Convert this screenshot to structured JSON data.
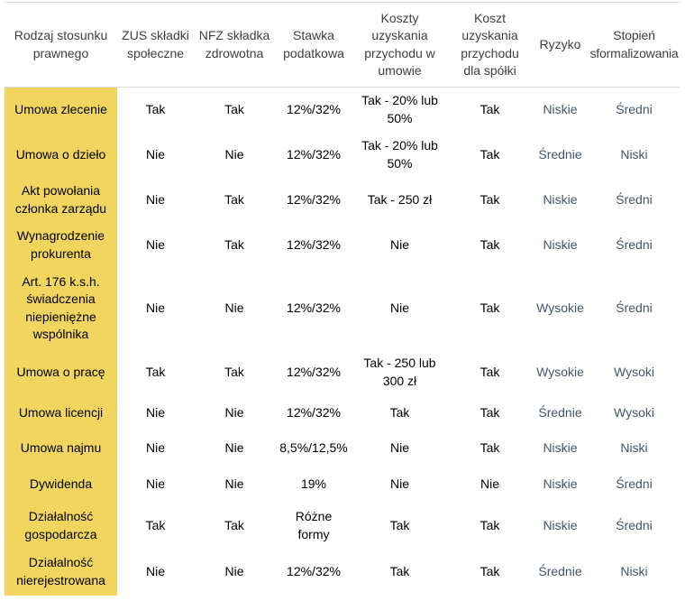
{
  "colors": {
    "highlight-yellow": "#F2D55F",
    "header-text": "#404040",
    "body-text": "#000000",
    "accent-text": "#44546A",
    "border-color": "#D9D9D9",
    "page-bg": "#FFFFFF"
  },
  "table": {
    "columns": [
      {
        "label": "Rodzaj stosunku prawnego"
      },
      {
        "label": "ZUS składki społeczne"
      },
      {
        "label": "NFZ składka zdrowotna"
      },
      {
        "label": "Stawka podatkowa"
      },
      {
        "label": "Koszty uzyskania przychodu w umowie"
      },
      {
        "label": "Koszt uzyskania przychodu dla spółki"
      },
      {
        "label": "Ryzyko"
      },
      {
        "label": "Stopień sformalizowania"
      }
    ],
    "rows": [
      {
        "cells": [
          "Umowa zlecenie",
          "Tak",
          "Tak",
          "12%/32%",
          "Tak - 20% lub 50%",
          "Tak",
          "Niskie",
          "Średni"
        ]
      },
      {
        "cells": [
          "Umowa o dzieło",
          "Nie",
          "Nie",
          "12%/32%",
          "Tak - 20% lub 50%",
          "Tak",
          "Średnie",
          "Niski"
        ]
      },
      {
        "cells": [
          "Akt powołania członka zarządu",
          "Nie",
          "Tak",
          "12%/32%",
          "Tak - 250 zł",
          "Tak",
          "Niskie",
          "Średni"
        ]
      },
      {
        "cells": [
          "Wynagrodzenie prokurenta",
          "Nie",
          "Tak",
          "12%/32%",
          "Nie",
          "Tak",
          "Niskie",
          "Średni"
        ]
      },
      {
        "cells": [
          "Art. 176 k.s.h. świadczenia niepieniężne wspólnika",
          "Nie",
          "Nie",
          "12%/32%",
          "Nie",
          "Tak",
          "Wysokie",
          "Średni"
        ]
      },
      {
        "cells": [
          "Umowa o pracę",
          "Tak",
          "Tak",
          "12%/32%",
          "Tak - 250 lub 300 zł",
          "Tak",
          "Wysokie",
          "Wysoki"
        ]
      },
      {
        "cells": [
          "Umowa licencji",
          "Nie",
          "Nie",
          "12%/32%",
          "Tak",
          "Tak",
          "Średnie",
          "Wysoki"
        ]
      },
      {
        "cells": [
          "Umowa najmu",
          "Nie",
          "Nie",
          "8,5%/12,5%",
          "Nie",
          "Tak",
          "Niskie",
          "Niski"
        ]
      },
      {
        "cells": [
          "Dywidenda",
          "Nie",
          "Nie",
          "19%",
          "Nie",
          "Nie",
          "Niskie",
          "Średni"
        ]
      },
      {
        "cells": [
          "Działalność gospodarcza",
          "Tak",
          "Tak",
          "Różne formy",
          "Tak",
          "Tak",
          "Niskie",
          "Średni"
        ]
      },
      {
        "cells": [
          "Działalność nierejestrowana",
          "Nie",
          "Nie",
          "12%/32%",
          "Tak",
          "Tak",
          "Średnie",
          "Niski"
        ]
      }
    ]
  }
}
